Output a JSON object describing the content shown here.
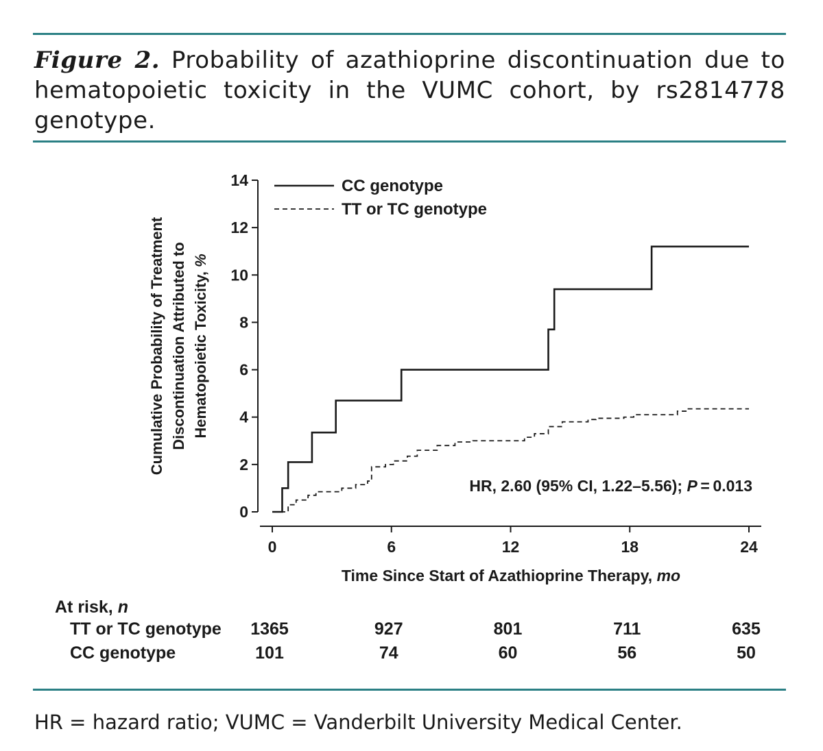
{
  "figure": {
    "label": "Figure 2.",
    "caption": "Probability of azathioprine discontinuation due to hematopoietic toxicity in the VUMC cohort, by rs2814778 genotype.",
    "footnote": "HR = hazard ratio; VUMC = Vanderbilt University Medical Center.",
    "accent_color": "#2a7f84"
  },
  "chart_data": {
    "type": "line",
    "step": true,
    "ylabel": [
      "Cumulative Probability of Treatment",
      "Discontinuation Attributed to",
      "Hematopoietic Toxicity, %"
    ],
    "xlabel": "Time Since Start of Azathioprine Therapy, mo",
    "xlim": [
      0,
      24
    ],
    "ylim": [
      0,
      14
    ],
    "xticks": [
      0,
      6,
      12,
      18,
      24
    ],
    "yticks": [
      0,
      2,
      4,
      6,
      8,
      10,
      12,
      14
    ],
    "legend_position": "top-left",
    "annotation": "HR, 2.60 (95% CI, 1.22–5.56); P = 0.013",
    "series": [
      {
        "name": "CC genotype",
        "style": "solid",
        "x": [
          0,
          0.5,
          0.8,
          2.0,
          3.2,
          6.5,
          13.9,
          14.2,
          19.1,
          24
        ],
        "y": [
          0,
          1.0,
          2.1,
          3.35,
          4.7,
          6.0,
          7.7,
          9.4,
          11.2,
          11.2
        ]
      },
      {
        "name": "TT or TC genotype",
        "style": "dashed",
        "x": [
          0,
          0.8,
          1.2,
          1.8,
          2.2,
          3.5,
          4.2,
          4.8,
          5.0,
          5.7,
          6.1,
          6.8,
          7.3,
          8.3,
          9.2,
          10.1,
          12.7,
          13.2,
          13.9,
          14.6,
          15.9,
          16.3,
          17.7,
          18.2,
          20.4,
          20.9,
          24
        ],
        "y": [
          0,
          0.3,
          0.5,
          0.7,
          0.85,
          1.0,
          1.15,
          1.3,
          1.9,
          2.0,
          2.15,
          2.35,
          2.6,
          2.8,
          2.95,
          3.0,
          3.15,
          3.3,
          3.6,
          3.8,
          3.9,
          3.95,
          4.0,
          4.1,
          4.25,
          4.35,
          4.35
        ]
      }
    ],
    "at_risk": {
      "title": "At risk,",
      "title_n": "n",
      "times": [
        0,
        6,
        12,
        18,
        24
      ],
      "rows": [
        {
          "label": "TT or TC genotype",
          "values": [
            1365,
            927,
            801,
            711,
            635
          ]
        },
        {
          "label": "CC genotype",
          "values": [
            101,
            74,
            60,
            56,
            50
          ]
        }
      ]
    }
  }
}
